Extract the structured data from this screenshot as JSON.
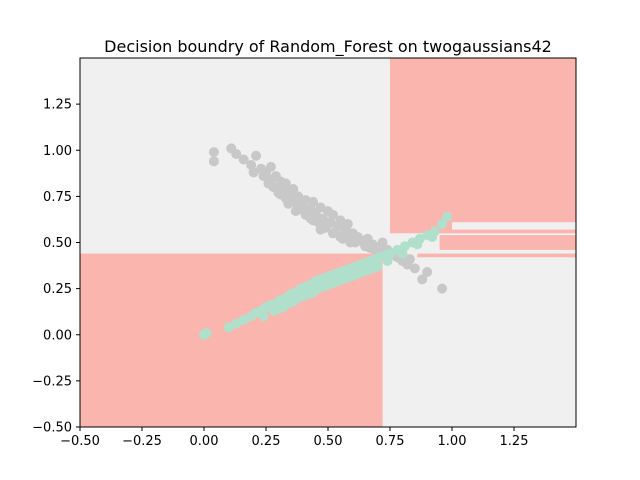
{
  "chart_data": {
    "type": "scatter",
    "title": "Decision boundry of Random_Forest on twogaussians42",
    "xlabel": "",
    "ylabel": "",
    "xlim": [
      -0.5,
      1.5
    ],
    "ylim": [
      -0.5,
      1.5
    ],
    "xticks": [
      -0.5,
      -0.25,
      0.0,
      0.25,
      0.5,
      0.75,
      1.0,
      1.25
    ],
    "xtick_labels": [
      "−0.50",
      "−0.25",
      "0.00",
      "0.25",
      "0.50",
      "0.75",
      "1.00",
      "1.25"
    ],
    "yticks": [
      -0.5,
      -0.25,
      0.0,
      0.25,
      0.5,
      0.75,
      1.0,
      1.25
    ],
    "ytick_labels": [
      "−0.50",
      "−0.25",
      "0.00",
      "0.25",
      "0.50",
      "0.75",
      "1.00",
      "1.25"
    ],
    "grid": false,
    "background_color": "#f0f0f0",
    "regions": [
      {
        "class": "red",
        "color": "#f9b5ae",
        "x": [
          -0.5,
          0.72
        ],
        "y": [
          -0.5,
          0.44
        ]
      },
      {
        "class": "red",
        "color": "#f9b5ae",
        "x": [
          0.75,
          1.5
        ],
        "y": [
          0.55,
          1.5
        ]
      },
      {
        "class": "red",
        "color": "#f9b5ae",
        "x": [
          0.95,
          1.5
        ],
        "y": [
          0.46,
          0.54
        ]
      },
      {
        "class": "red",
        "color": "#f9b5ae",
        "x": [
          0.86,
          1.5
        ],
        "y": [
          0.42,
          0.44
        ]
      },
      {
        "class": "light",
        "color": "#f0f0f0",
        "x": [
          1.0,
          1.5
        ],
        "y": [
          0.57,
          0.61
        ]
      }
    ],
    "series": [
      {
        "color": "#c8c8c8",
        "x": [
          0.04,
          0.04,
          0.11,
          0.13,
          0.16,
          0.19,
          0.21,
          0.23,
          0.25,
          0.27,
          0.27,
          0.29,
          0.3,
          0.31,
          0.32,
          0.33,
          0.35,
          0.36,
          0.37,
          0.38,
          0.4,
          0.41,
          0.43,
          0.44,
          0.45,
          0.47,
          0.48,
          0.5,
          0.51,
          0.52,
          0.54,
          0.55,
          0.57,
          0.58,
          0.6,
          0.62,
          0.64,
          0.66,
          0.68,
          0.7,
          0.72,
          0.74,
          0.76,
          0.78,
          0.8,
          0.82,
          0.85,
          0.88,
          0.96,
          0.28,
          0.33,
          0.38,
          0.42,
          0.46,
          0.49,
          0.53,
          0.31,
          0.36,
          0.41,
          0.44,
          0.48,
          0.52,
          0.56,
          0.61,
          0.65,
          0.69,
          0.35,
          0.39,
          0.45,
          0.5,
          0.58,
          0.63,
          0.67,
          0.73,
          0.77,
          0.26,
          0.3,
          0.34,
          0.37,
          0.43,
          0.47,
          0.55,
          0.59,
          0.71,
          0.83,
          0.9,
          0.24,
          0.2
        ],
        "y": [
          0.99,
          0.94,
          1.01,
          0.98,
          0.95,
          0.92,
          0.97,
          0.9,
          0.88,
          0.91,
          0.84,
          0.86,
          0.8,
          0.83,
          0.77,
          0.82,
          0.76,
          0.79,
          0.72,
          0.75,
          0.7,
          0.73,
          0.68,
          0.72,
          0.66,
          0.69,
          0.63,
          0.67,
          0.61,
          0.65,
          0.59,
          0.62,
          0.57,
          0.6,
          0.55,
          0.53,
          0.51,
          0.52,
          0.49,
          0.47,
          0.5,
          0.46,
          0.44,
          0.42,
          0.4,
          0.38,
          0.36,
          0.3,
          0.25,
          0.8,
          0.74,
          0.7,
          0.66,
          0.61,
          0.58,
          0.56,
          0.76,
          0.72,
          0.65,
          0.62,
          0.59,
          0.55,
          0.52,
          0.5,
          0.48,
          0.46,
          0.78,
          0.68,
          0.64,
          0.6,
          0.54,
          0.51,
          0.47,
          0.45,
          0.43,
          0.82,
          0.77,
          0.71,
          0.67,
          0.63,
          0.57,
          0.53,
          0.5,
          0.44,
          0.41,
          0.34,
          0.86,
          0.88
        ]
      },
      {
        "color": "#b0e0cc",
        "x": [
          0.0,
          0.01,
          0.1,
          0.13,
          0.16,
          0.19,
          0.21,
          0.23,
          0.25,
          0.27,
          0.29,
          0.31,
          0.33,
          0.35,
          0.37,
          0.39,
          0.41,
          0.43,
          0.45,
          0.47,
          0.49,
          0.51,
          0.53,
          0.55,
          0.57,
          0.59,
          0.61,
          0.63,
          0.65,
          0.67,
          0.69,
          0.71,
          0.73,
          0.75,
          0.78,
          0.81,
          0.84,
          0.87,
          0.9,
          0.93,
          0.96,
          0.98,
          0.28,
          0.32,
          0.36,
          0.4,
          0.44,
          0.48,
          0.52,
          0.56,
          0.6,
          0.64,
          0.68,
          0.24,
          0.3,
          0.34,
          0.38,
          0.42,
          0.46,
          0.5,
          0.54,
          0.58,
          0.62,
          0.66,
          0.7,
          0.74,
          0.8,
          0.86,
          0.92
        ],
        "y": [
          0.0,
          0.01,
          0.04,
          0.06,
          0.08,
          0.1,
          0.12,
          0.13,
          0.15,
          0.16,
          0.17,
          0.19,
          0.2,
          0.22,
          0.23,
          0.25,
          0.26,
          0.27,
          0.29,
          0.3,
          0.31,
          0.32,
          0.33,
          0.34,
          0.35,
          0.36,
          0.37,
          0.38,
          0.39,
          0.4,
          0.41,
          0.42,
          0.43,
          0.44,
          0.46,
          0.48,
          0.5,
          0.52,
          0.54,
          0.56,
          0.6,
          0.64,
          0.13,
          0.15,
          0.18,
          0.21,
          0.23,
          0.26,
          0.28,
          0.3,
          0.32,
          0.34,
          0.36,
          0.1,
          0.14,
          0.17,
          0.2,
          0.22,
          0.25,
          0.27,
          0.29,
          0.31,
          0.33,
          0.35,
          0.37,
          0.4,
          0.44,
          0.49,
          0.53
        ]
      }
    ]
  }
}
